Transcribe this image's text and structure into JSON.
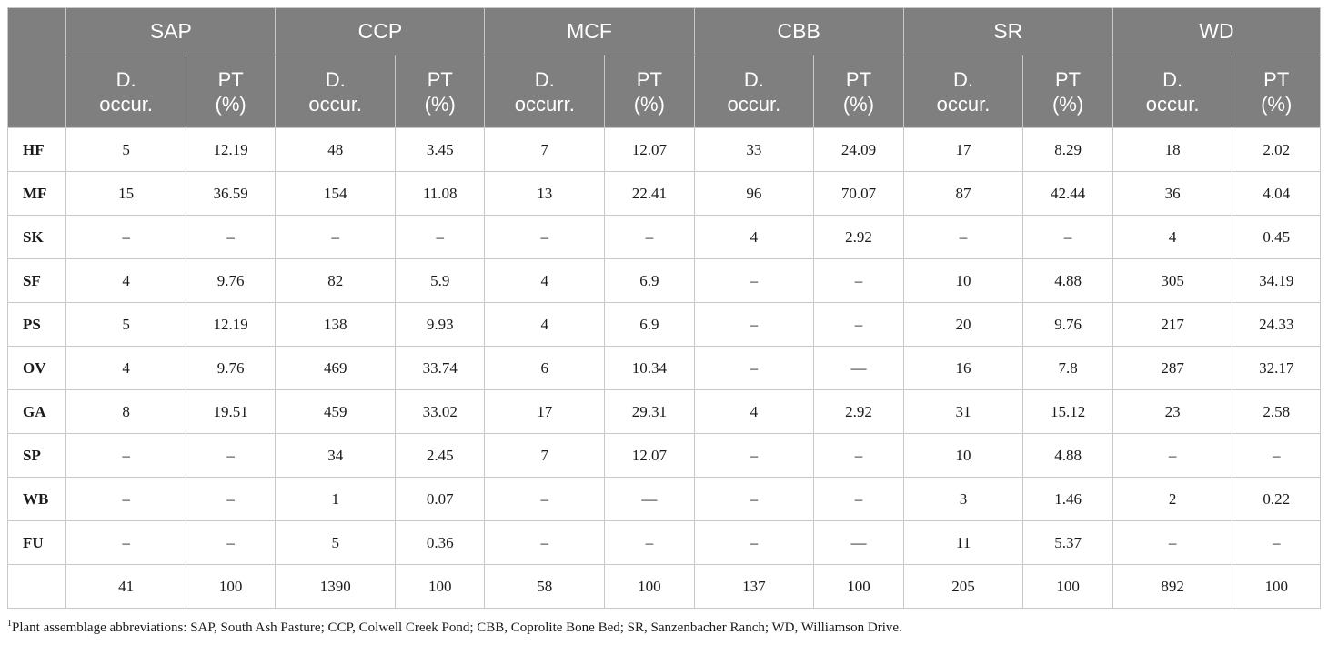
{
  "sites": [
    "SAP",
    "CCP",
    "MCF",
    "CBB",
    "SR",
    "WD"
  ],
  "subheaders": [
    [
      "D.",
      "occur."
    ],
    [
      "PT",
      "(%)"
    ],
    [
      "D.",
      "occur."
    ],
    [
      "PT",
      "(%)"
    ],
    [
      "D.",
      "occurr."
    ],
    [
      "PT",
      "(%)"
    ],
    [
      "D.",
      "occur."
    ],
    [
      "PT",
      "(%)"
    ],
    [
      "D.",
      "occur."
    ],
    [
      "PT",
      "(%)"
    ],
    [
      "D.",
      "occur."
    ],
    [
      "PT",
      "(%)"
    ]
  ],
  "rows": [
    {
      "label": "HF",
      "cells": [
        "5",
        "12.19",
        "48",
        "3.45",
        "7",
        "12.07",
        "33",
        "24.09",
        "17",
        "8.29",
        "18",
        "2.02"
      ]
    },
    {
      "label": "MF",
      "cells": [
        "15",
        "36.59",
        "154",
        "11.08",
        "13",
        "22.41",
        "96",
        "70.07",
        "87",
        "42.44",
        "36",
        "4.04"
      ]
    },
    {
      "label": "SK",
      "cells": [
        "–",
        "–",
        "–",
        "–",
        "–",
        "–",
        "4",
        "2.92",
        "–",
        "–",
        "4",
        "0.45"
      ]
    },
    {
      "label": "SF",
      "cells": [
        "4",
        "9.76",
        "82",
        "5.9",
        "4",
        "6.9",
        "–",
        "–",
        "10",
        "4.88",
        "305",
        "34.19"
      ]
    },
    {
      "label": "PS",
      "cells": [
        "5",
        "12.19",
        "138",
        "9.93",
        "4",
        "6.9",
        "–",
        "–",
        "20",
        "9.76",
        "217",
        "24.33"
      ]
    },
    {
      "label": "OV",
      "cells": [
        "4",
        "9.76",
        "469",
        "33.74",
        "6",
        "10.34",
        "–",
        "—",
        "16",
        "7.8",
        "287",
        "32.17"
      ]
    },
    {
      "label": "GA",
      "cells": [
        "8",
        "19.51",
        "459",
        "33.02",
        "17",
        "29.31",
        "4",
        "2.92",
        "31",
        "15.12",
        "23",
        "2.58"
      ]
    },
    {
      "label": "SP",
      "cells": [
        "–",
        "–",
        "34",
        "2.45",
        "7",
        "12.07",
        "–",
        "–",
        "10",
        "4.88",
        "–",
        "–"
      ]
    },
    {
      "label": "WB",
      "cells": [
        "–",
        "–",
        "1",
        "0.07",
        "–",
        "—",
        "–",
        "–",
        "3",
        "1.46",
        "2",
        "0.22"
      ]
    },
    {
      "label": "FU",
      "cells": [
        "–",
        "–",
        "5",
        "0.36",
        "–",
        "–",
        "–",
        "—",
        "11",
        "5.37",
        "–",
        "–"
      ]
    },
    {
      "label": "",
      "cells": [
        "41",
        "100",
        "1390",
        "100",
        "58",
        "100",
        "137",
        "100",
        "205",
        "100",
        "892",
        "100"
      ]
    }
  ],
  "footnote": {
    "marker": "1",
    "text": "Plant assemblage abbreviations: SAP, South Ash Pasture; CCP, Colwell Creek Pond; CBB, Coprolite Bone Bed; SR, Sanzenbacher Ranch; WD, Williamson Drive."
  }
}
